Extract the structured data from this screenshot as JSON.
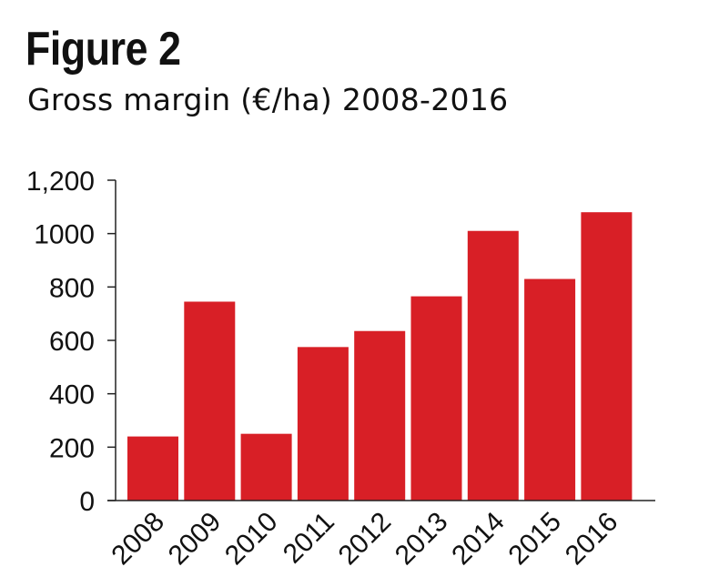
{
  "figure_label": "Figure 2",
  "figure_title": "Gross margin (€/ha) 2008-2016",
  "colors": {
    "bar": "#d81f26",
    "axis": "#222222",
    "text": "#111111"
  },
  "chart_data": {
    "type": "bar",
    "title": "Gross margin (€/ha) 2008-2016",
    "xlabel": "",
    "ylabel": "",
    "categories": [
      "2008",
      "2009",
      "2010",
      "2011",
      "2012",
      "2013",
      "2014",
      "2015",
      "2016"
    ],
    "values": [
      240,
      745,
      250,
      575,
      635,
      765,
      1010,
      830,
      1080
    ],
    "ylim": [
      0,
      1200
    ],
    "yticks": [
      0,
      200,
      400,
      600,
      800,
      1000,
      1200
    ],
    "ytick_labels": [
      "0",
      "200",
      "400",
      "600",
      "800",
      "1000",
      "1,200"
    ],
    "grid": false,
    "legend": "none"
  }
}
